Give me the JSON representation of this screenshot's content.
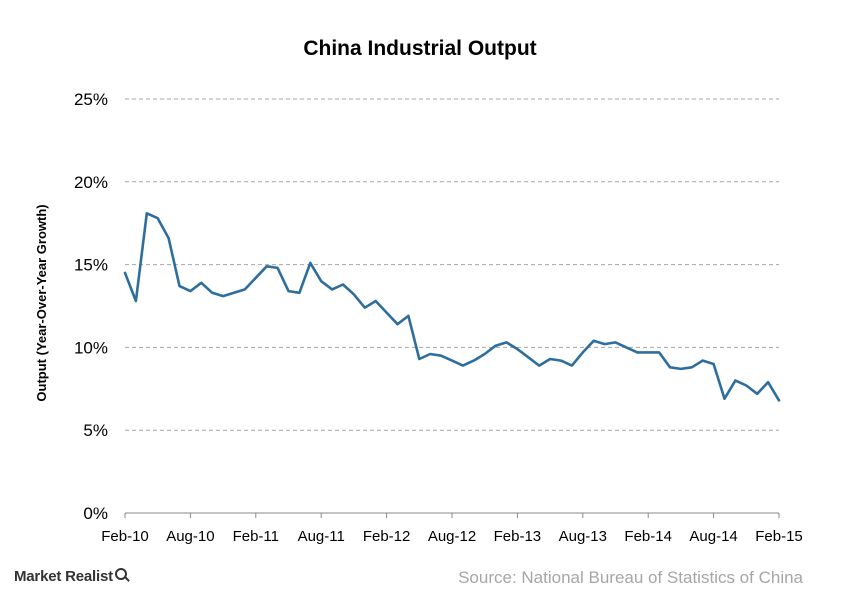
{
  "chart_data": {
    "type": "line",
    "title": "China Industrial Output",
    "ylabel": "Output (Year-Over-Year  Growth)",
    "xlabel": "",
    "ylim": [
      0,
      25
    ],
    "yticks": [
      "0%",
      "5%",
      "10%",
      "15%",
      "20%",
      "25%"
    ],
    "ytick_values": [
      0,
      5,
      10,
      15,
      20,
      25
    ],
    "xticks": [
      "Feb-10",
      "Aug-10",
      "Feb-11",
      "Aug-11",
      "Feb-12",
      "Aug-12",
      "Feb-13",
      "Aug-13",
      "Feb-14",
      "Aug-14",
      "Feb-15"
    ],
    "xtick_indices": [
      0,
      6,
      12,
      18,
      24,
      30,
      36,
      42,
      48,
      54,
      60
    ],
    "grid": true,
    "line_color": "#2e6e9e",
    "series": [
      {
        "values": [
          14.5,
          12.8,
          18.1,
          17.8,
          16.6,
          13.7,
          13.4,
          13.9,
          13.3,
          13.1,
          13.3,
          13.5,
          14.2,
          14.9,
          14.8,
          13.4,
          13.3,
          15.1,
          14.0,
          13.5,
          13.8,
          13.2,
          12.4,
          12.8,
          12.1,
          11.4,
          11.9,
          9.3,
          9.6,
          9.5,
          9.2,
          8.9,
          9.2,
          9.6,
          10.1,
          10.3,
          9.9,
          9.4,
          8.9,
          9.3,
          9.2,
          8.9,
          9.7,
          10.4,
          10.2,
          10.3,
          10.0,
          9.7,
          9.7,
          9.7,
          8.8,
          8.7,
          8.8,
          9.2,
          9.0,
          6.9,
          8.0,
          7.7,
          7.2,
          7.9,
          6.8
        ]
      }
    ]
  },
  "footer": {
    "brand": "Market Realist",
    "source": "Source: National Bureau of Statistics of China"
  }
}
